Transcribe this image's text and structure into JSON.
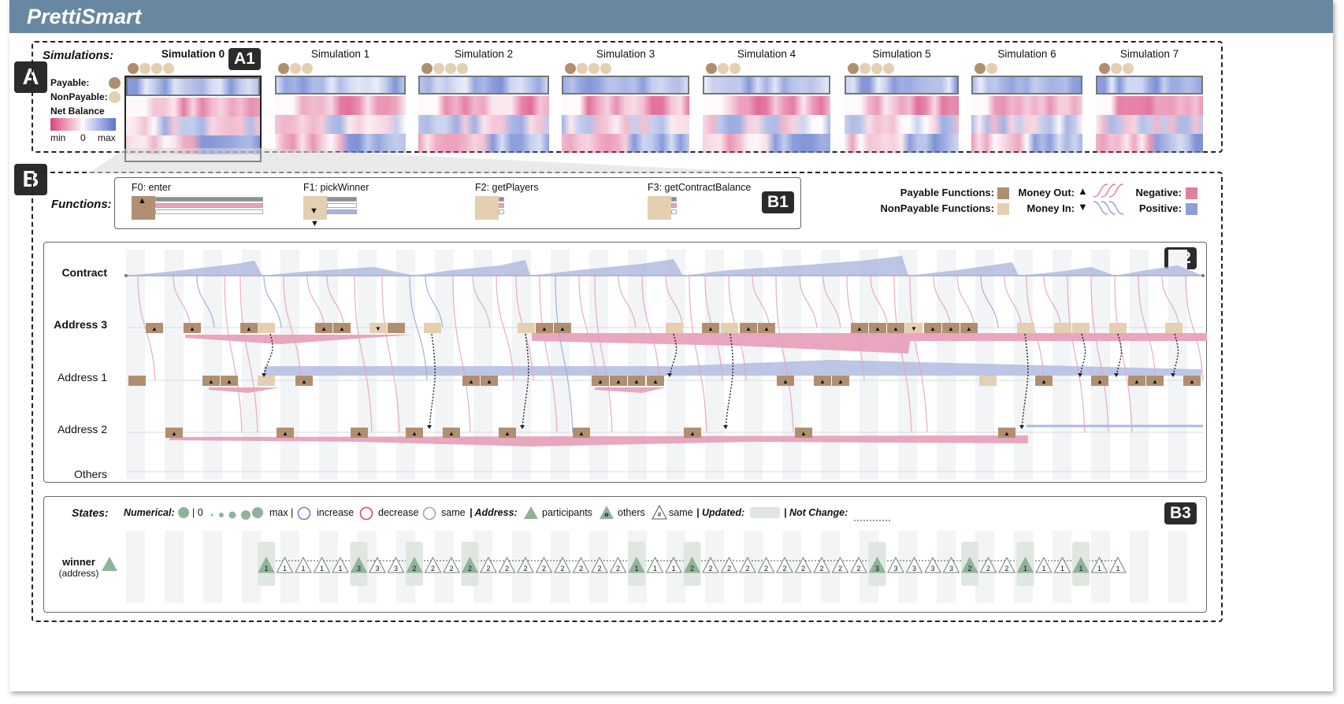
{
  "app": {
    "title": "PrettiSmart"
  },
  "sections": {
    "a": "A",
    "b": "B",
    "a1": "A1",
    "b1": "B1",
    "b2": "B2",
    "b3": "B3"
  },
  "simulations": {
    "label": "Simulations:",
    "legend": {
      "payable": "Payable:",
      "nonpayable": "NonPayable:",
      "net_balance": "Net Balance",
      "min": "min",
      "zero": "0",
      "max": "max"
    },
    "items": [
      {
        "title": "Simulation 0",
        "dots": [
          "pay",
          "non",
          "non",
          "non"
        ]
      },
      {
        "title": "Simulation 1",
        "dots": [
          "pay",
          "non",
          "non"
        ]
      },
      {
        "title": "Simulation 2",
        "dots": [
          "pay",
          "non",
          "non",
          "non"
        ]
      },
      {
        "title": "Simulation 3",
        "dots": [
          "pay",
          "non",
          "non",
          "non"
        ]
      },
      {
        "title": "Simulation 4",
        "dots": [
          "pay",
          "non",
          "non"
        ]
      },
      {
        "title": "Simulation 5",
        "dots": [
          "pay",
          "non",
          "non",
          "non"
        ]
      },
      {
        "title": "Simulation 6",
        "dots": [
          "pay",
          "non"
        ]
      },
      {
        "title": "Simulation 7",
        "dots": [
          "pay",
          "non",
          "non"
        ]
      }
    ]
  },
  "functions": {
    "label": "Functions:",
    "items": [
      {
        "name": "F0: enter",
        "type": "payable",
        "direction": "out"
      },
      {
        "name": "F1: pickWinner",
        "type": "nonpayable",
        "direction": "in"
      },
      {
        "name": "F2: getPlayers",
        "type": "nonpayable",
        "direction": ""
      },
      {
        "name": "F3: getContractBalance",
        "type": "nonpayable",
        "direction": ""
      }
    ],
    "legend": {
      "payable_functions": "Payable Functions:",
      "nonpayable_functions": "NonPayable Functions:",
      "money_out": "Money Out:",
      "money_in": "Money In:",
      "negative": "Negative:",
      "positive": "Positive:"
    }
  },
  "flow": {
    "rows": [
      "Contract",
      "Address 3",
      "Address 1",
      "Address 2",
      "Others"
    ]
  },
  "states": {
    "label": "States:",
    "numerical": "Numerical:",
    "zero": "| 0",
    "max": "max |",
    "increase": "increase",
    "decrease": "decrease",
    "same": "same",
    "address": "| Address:",
    "participants": "participants",
    "others": "others",
    "same_addr": "same",
    "updated": "| Updated:",
    "not_change": "| Not Change:",
    "variable": {
      "name": "winner",
      "type": "(address)"
    },
    "winner_sequence": [
      "1",
      "1",
      "1",
      "1",
      "1",
      "3",
      "3",
      "3",
      "2",
      "2",
      "2",
      "2",
      "2",
      "2",
      "2",
      "2",
      "2",
      "2",
      "2",
      "2",
      "1",
      "1",
      "1",
      "2",
      "2",
      "2",
      "2",
      "2",
      "2",
      "2",
      "2",
      "2",
      "2",
      "3",
      "3",
      "3",
      "3",
      "3",
      "2",
      "2",
      "2",
      "1",
      "1",
      "1",
      "1",
      "1",
      "1"
    ]
  },
  "colors": {
    "header": "#6788a0",
    "payable": "#b08f70",
    "nonpayable": "#e4cfb2",
    "negative": "#df7fa0",
    "positive": "#8f9fd6",
    "state_green": "#8fb39a"
  }
}
